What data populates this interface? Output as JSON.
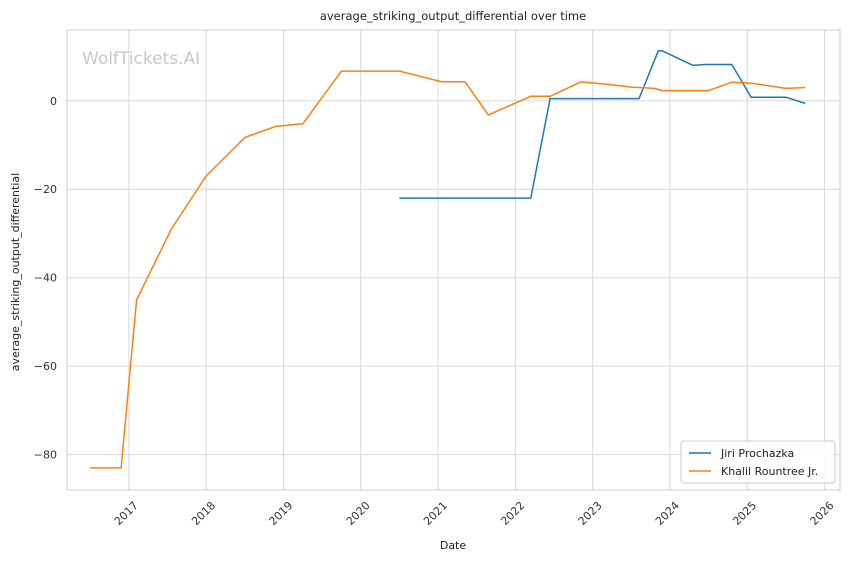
{
  "chart_data": {
    "type": "line",
    "title": "average_striking_output_differential over time",
    "xlabel": "Date",
    "ylabel": "average_striking_output_differential",
    "watermark": "WolfTickets.AI",
    "xlim": [
      2016.2,
      2026.2
    ],
    "ylim": [
      -88,
      16
    ],
    "x_ticks": [
      2017,
      2018,
      2019,
      2020,
      2021,
      2022,
      2023,
      2024,
      2025,
      2026
    ],
    "y_ticks": [
      0,
      -20,
      -40,
      -60,
      -80
    ],
    "y_tick_labels": [
      "0",
      "−20",
      "−40",
      "−60",
      "−80"
    ],
    "grid": true,
    "legend_position": "lower-right",
    "series": [
      {
        "name": "Jiri Prochazka",
        "color": "#1f77b4",
        "x": [
          2020.5,
          2022.2,
          2022.45,
          2023.6,
          2023.85,
          2023.9,
          2024.3,
          2024.45,
          2024.8,
          2025.05,
          2025.5,
          2025.75
        ],
        "y": [
          -22,
          -22,
          0.5,
          0.5,
          11.3,
          11.3,
          8,
          8.2,
          8.2,
          0.8,
          0.8,
          -0.6
        ]
      },
      {
        "name": "Khalil Rountree Jr.",
        "color": "#ff7f0e",
        "x": [
          2016.5,
          2016.9,
          2017.1,
          2017.55,
          2018.0,
          2018.5,
          2018.9,
          2019.25,
          2019.75,
          2020.5,
          2021.05,
          2021.35,
          2021.65,
          2022.2,
          2022.45,
          2022.85,
          2023.2,
          2023.5,
          2023.8,
          2023.9,
          2024.1,
          2024.5,
          2024.8,
          2025.05,
          2025.5,
          2025.75
        ],
        "y": [
          -83,
          -83,
          -45,
          -29,
          -17,
          -8.3,
          -5.8,
          -5.2,
          6.7,
          6.7,
          4.3,
          4.3,
          -3.2,
          1.0,
          1.0,
          4.3,
          3.7,
          3.1,
          2.8,
          2.3,
          2.3,
          2.3,
          4.2,
          4.0,
          2.8,
          3.0
        ]
      }
    ]
  }
}
